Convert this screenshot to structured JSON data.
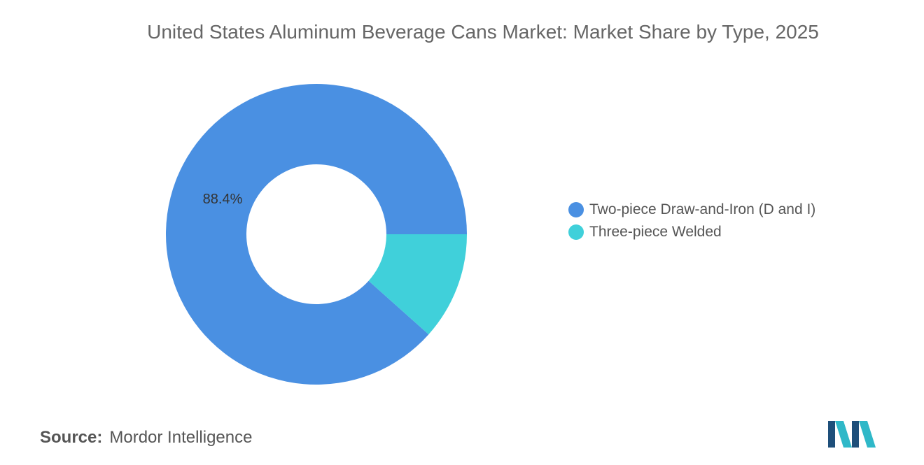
{
  "chart_data": {
    "type": "pie",
    "title": "United States Aluminum Beverage Cans Market: Market Share by Type, 2025",
    "donut": true,
    "categories": [
      "Two-piece Draw-and-Iron (D and I)",
      "Three-piece Welded"
    ],
    "values": [
      88.4,
      11.6
    ],
    "data_labels": [
      "88.4%",
      ""
    ],
    "colors": [
      "#4A90E2",
      "#40D0DA"
    ],
    "legend": "right"
  },
  "source": {
    "label": "Source:",
    "text": "Mordor Intelligence"
  },
  "logo": {
    "icon": "mordor-intelligence-logo-icon",
    "colors": [
      "#1E4F7A",
      "#2FB8C8"
    ]
  }
}
